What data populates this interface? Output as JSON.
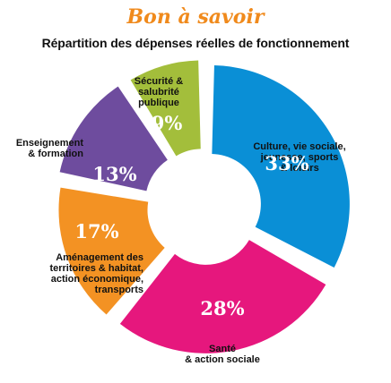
{
  "header": {
    "title": "Bon à savoir",
    "subtitle": "Répartition des dépenses réelles de fonctionnement"
  },
  "chart_data": {
    "type": "pie",
    "title": "Répartition des dépenses réelles de fonctionnement",
    "slices": [
      {
        "label": "Culture, vie sociale, jeunesse, sports & loisirs",
        "value": 33,
        "display": "33%",
        "color": "#0a8fd6"
      },
      {
        "label": "Santé & action sociale",
        "value": 28,
        "display": "28%",
        "color": "#e6177d"
      },
      {
        "label": "Aménagement des territoires & habitat, action économique, transports",
        "value": 17,
        "display": "17%",
        "color": "#f39223"
      },
      {
        "label": "Enseignement & formation",
        "value": 13,
        "display": "13%",
        "color": "#6e4c9e"
      },
      {
        "label": "Sécurité & salubrité publique",
        "value": 9,
        "display": "9%",
        "color": "#a3be3b"
      }
    ]
  }
}
